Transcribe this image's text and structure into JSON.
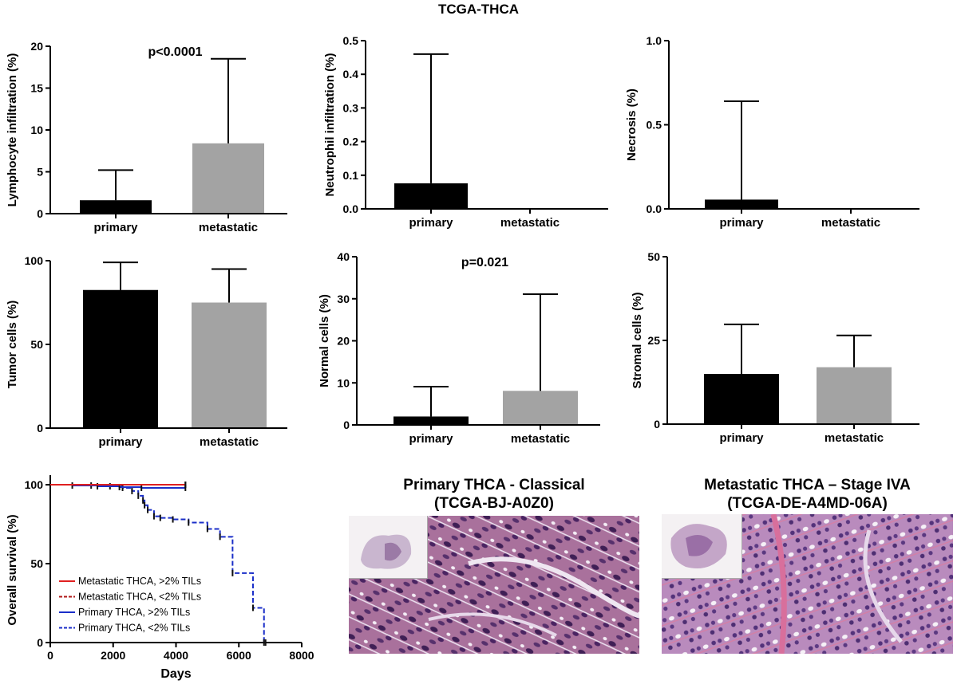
{
  "figure_title": "TCGA-THCA",
  "chart_data": [
    {
      "type": "bar",
      "ylabel": "Lymphocyte infiltration (%)",
      "categories": [
        "primary",
        "metastatic"
      ],
      "values": [
        1.6,
        8.4
      ],
      "errors": [
        3.6,
        10.1
      ],
      "ylim": [
        0,
        20
      ],
      "yticks": [
        "0",
        "5",
        "10",
        "15",
        "20"
      ],
      "annotation": "p<0.0001",
      "colors": [
        "#000000",
        "#a3a3a3"
      ]
    },
    {
      "type": "bar",
      "ylabel": "Neutrophil infiltration (%)",
      "categories": [
        "primary",
        "metastatic"
      ],
      "values": [
        0.076,
        0.0
      ],
      "errors": [
        0.384,
        0.0
      ],
      "ylim": [
        0,
        0.5
      ],
      "yticks": [
        "0.0",
        "0.1",
        "0.2",
        "0.3",
        "0.4",
        "0.5"
      ],
      "annotation": "",
      "colors": [
        "#000000",
        "#a3a3a3"
      ]
    },
    {
      "type": "bar",
      "ylabel": "Necrosis (%)",
      "categories": [
        "primary",
        "metastatic"
      ],
      "values": [
        0.055,
        0.0
      ],
      "errors": [
        0.585,
        0.0
      ],
      "ylim": [
        0,
        1.0
      ],
      "yticks": [
        "0.0",
        "0.5",
        "1.0"
      ],
      "annotation": "",
      "colors": [
        "#000000",
        "#a3a3a3"
      ]
    },
    {
      "type": "bar",
      "ylabel": "Tumor cells (%)",
      "categories": [
        "primary",
        "metastatic"
      ],
      "values": [
        82.5,
        75
      ],
      "errors": [
        16.5,
        20
      ],
      "ylim": [
        0,
        100
      ],
      "yticks": [
        "0",
        "50",
        "100"
      ],
      "annotation": "",
      "colors": [
        "#000000",
        "#a3a3a3"
      ]
    },
    {
      "type": "bar",
      "ylabel": "Normal cells (%)",
      "categories": [
        "primary",
        "metastatic"
      ],
      "values": [
        2.0,
        8.1
      ],
      "errors": [
        7.1,
        23.0
      ],
      "ylim": [
        0,
        40
      ],
      "yticks": [
        "0",
        "10",
        "20",
        "30",
        "40"
      ],
      "annotation": "p=0.021",
      "colors": [
        "#000000",
        "#a3a3a3"
      ]
    },
    {
      "type": "bar",
      "ylabel": "Stromal cells (%)",
      "categories": [
        "primary",
        "metastatic"
      ],
      "values": [
        15,
        17
      ],
      "errors": [
        14.8,
        9.5
      ],
      "ylim": [
        0,
        50
      ],
      "yticks": [
        "0",
        "25",
        "50"
      ],
      "annotation": "",
      "colors": [
        "#000000",
        "#a3a3a3"
      ]
    },
    {
      "type": "line",
      "subtype": "kaplan-meier",
      "xlabel": "Days",
      "ylabel": "Overall survival (%)",
      "xlim": [
        0,
        8000
      ],
      "ylim": [
        0,
        100
      ],
      "xticks": [
        "0",
        "2000",
        "4000",
        "6000",
        "8000"
      ],
      "yticks": [
        "0",
        "50",
        "100"
      ],
      "series": [
        {
          "name": "Metastatic THCA, >2% TILs",
          "color": "#e02020",
          "dashed": false,
          "x": [
            0,
            4300
          ],
          "y": [
            100,
            100
          ]
        },
        {
          "name": "Metastatic THCA, <2% TILs",
          "color": "#b01818",
          "dashed": true,
          "x": [
            0,
            4300
          ],
          "y": [
            100,
            100
          ]
        },
        {
          "name": "Primary THCA, >2% TILs",
          "color": "#1a2ec8",
          "dashed": false,
          "x": [
            0,
            700,
            1500,
            2200,
            2900,
            4300
          ],
          "y": [
            100,
            99.5,
            99,
            98.5,
            98,
            98
          ]
        },
        {
          "name": "Primary THCA, <2% TILs",
          "color": "#1a2ec8",
          "dashed": true,
          "x": [
            0,
            1300,
            1900,
            2300,
            2600,
            2800,
            2950,
            3000,
            3100,
            3300,
            3500,
            3900,
            4400,
            5000,
            5400,
            5800,
            6450,
            6800,
            6850
          ],
          "y": [
            100,
            99.5,
            99,
            98,
            96,
            93,
            90,
            87,
            84,
            80,
            79,
            78,
            76,
            72,
            67,
            44,
            22,
            0,
            0
          ]
        }
      ]
    }
  ],
  "photos": [
    {
      "title_line1": "Primary THCA - Classical",
      "title_line2": "(TCGA-BJ-A0Z0)"
    },
    {
      "title_line1": "Metastatic THCA – Stage IVA",
      "title_line2": "(TCGA-DE-A4MD-06A)"
    }
  ]
}
